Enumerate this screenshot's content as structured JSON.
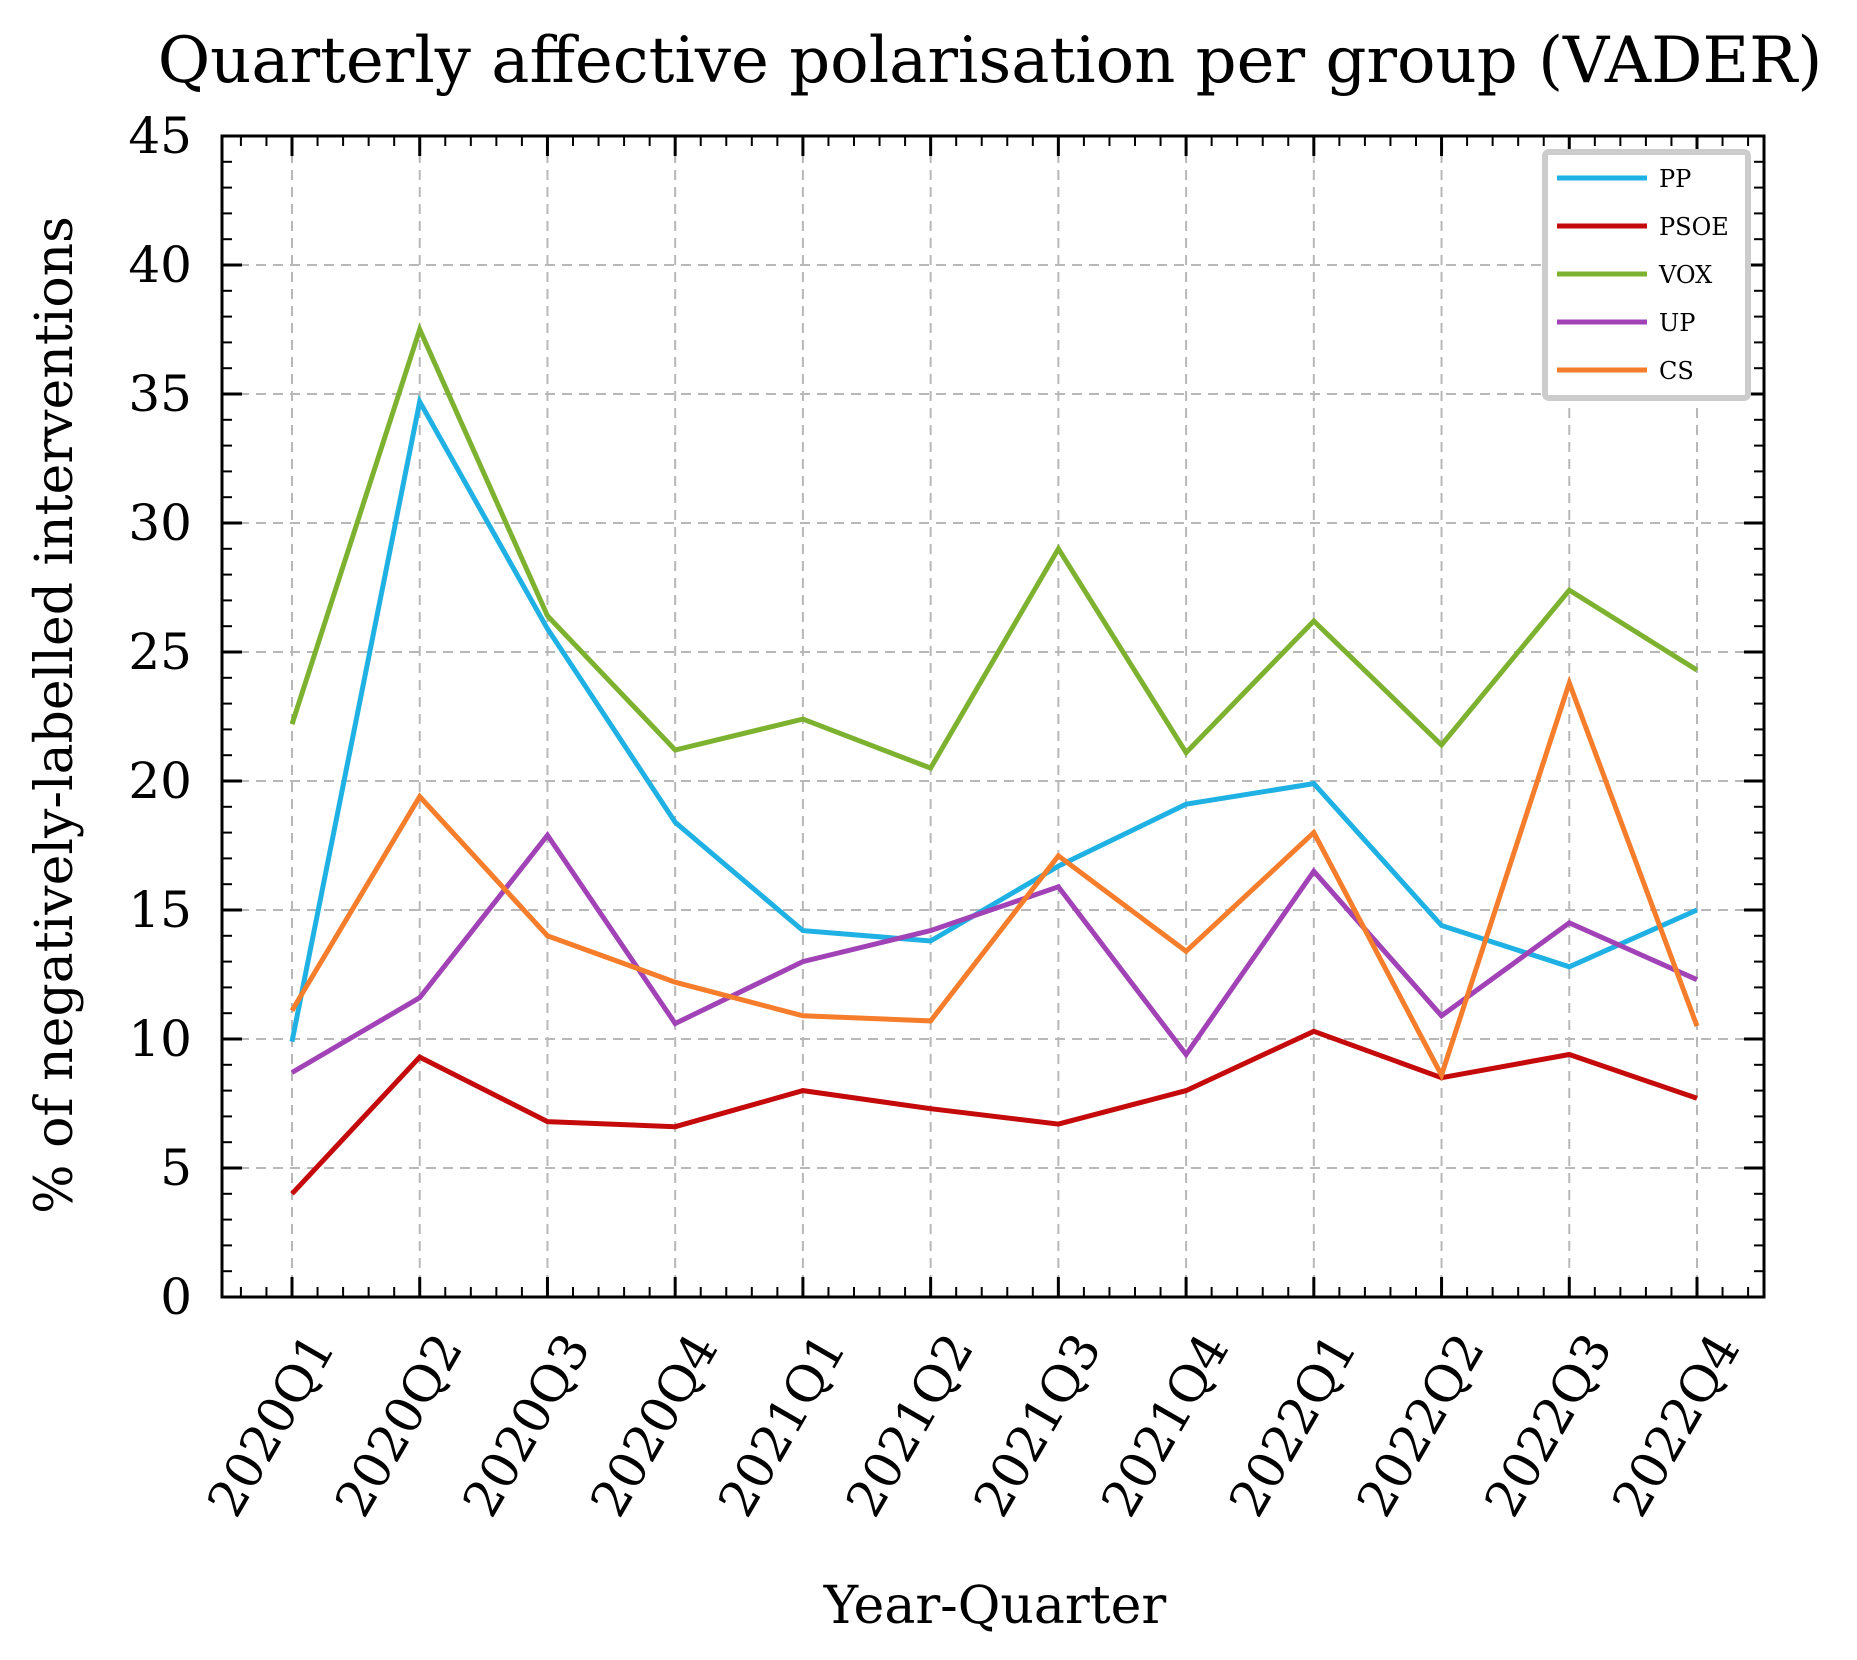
{
  "chart_data": {
    "type": "line",
    "title": "Quarterly affective polarisation per group (VADER)",
    "xlabel": "Year-Quarter",
    "ylabel": "% of negatively-labelled interventions",
    "ylim": [
      0,
      45
    ],
    "yticks": [
      "0",
      "5",
      "10",
      "15",
      "20",
      "25",
      "30",
      "35",
      "40",
      "45"
    ],
    "grid": true,
    "legend_position": "top-right",
    "categories": [
      "2020Q1",
      "2020Q2",
      "2020Q3",
      "2020Q4",
      "2021Q1",
      "2021Q2",
      "2021Q3",
      "2021Q4",
      "2022Q1",
      "2022Q2",
      "2022Q3",
      "2022Q4"
    ],
    "series": [
      {
        "name": "PP",
        "color": "#1fb1e3",
        "values": [
          9.9,
          34.7,
          25.9,
          18.4,
          14.2,
          13.8,
          16.7,
          19.1,
          19.9,
          14.4,
          12.8,
          15.0
        ]
      },
      {
        "name": "PSOE",
        "color": "#c40a0a",
        "values": [
          4.0,
          9.3,
          6.8,
          6.6,
          8.0,
          7.3,
          6.7,
          8.0,
          10.3,
          8.5,
          9.4,
          7.7
        ]
      },
      {
        "name": "VOX",
        "color": "#7db230",
        "values": [
          22.2,
          37.5,
          26.4,
          21.2,
          22.4,
          20.5,
          29.0,
          21.1,
          26.2,
          21.4,
          27.4,
          24.3
        ]
      },
      {
        "name": "UP",
        "color": "#a142b6",
        "values": [
          8.7,
          11.6,
          17.9,
          10.6,
          13.0,
          14.2,
          15.9,
          9.4,
          16.5,
          10.9,
          14.5,
          12.3
        ]
      },
      {
        "name": "CS",
        "color": "#f57d2b",
        "values": [
          11.1,
          19.4,
          14.0,
          12.2,
          10.9,
          10.7,
          17.1,
          13.4,
          18.0,
          8.6,
          23.8,
          10.5
        ]
      }
    ]
  }
}
